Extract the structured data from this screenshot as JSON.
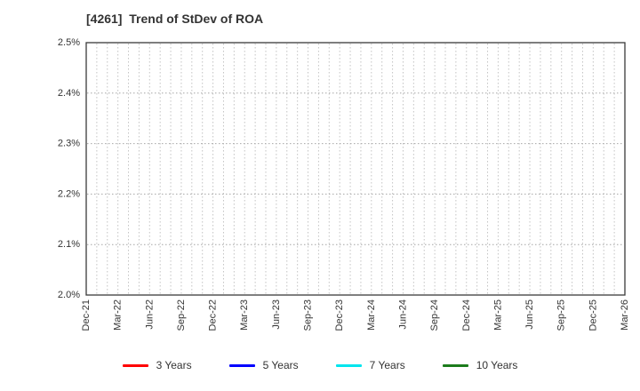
{
  "page": {
    "background": "#ffffff"
  },
  "chart_data": {
    "type": "line",
    "title": "[4261]  Trend of StDev of ROA",
    "x_tick_labels": [
      "Dec-21",
      "Mar-22",
      "Jun-22",
      "Sep-22",
      "Dec-22",
      "Mar-23",
      "Jun-23",
      "Sep-23",
      "Dec-23",
      "Mar-24",
      "Jun-24",
      "Sep-24",
      "Dec-24",
      "Mar-25",
      "Jun-25",
      "Sep-25",
      "Dec-25",
      "Mar-26"
    ],
    "x_minor_divisions_per_interval": 3,
    "y_axis": {
      "min": 2.0,
      "max": 2.5,
      "unit": "%",
      "ticks": [
        {
          "value": 2.0,
          "label": "2.0%"
        },
        {
          "value": 2.1,
          "label": "2.1%"
        },
        {
          "value": 2.2,
          "label": "2.2%"
        },
        {
          "value": 2.3,
          "label": "2.3%"
        },
        {
          "value": 2.4,
          "label": "2.4%"
        },
        {
          "value": 2.5,
          "label": "2.5%"
        }
      ]
    },
    "grid": {
      "vertical": "dotted-monthly",
      "horizontal": "dotted-major",
      "on": true
    },
    "legend_position": "bottom-center",
    "series": [
      {
        "name": "3 Years",
        "color": "#ff0000",
        "values": []
      },
      {
        "name": "5 Years",
        "color": "#0000ff",
        "values": []
      },
      {
        "name": "7 Years",
        "color": "#00e5ee",
        "values": []
      },
      {
        "name": "10 Years",
        "color": "#1c7c1c",
        "values": []
      }
    ]
  },
  "colors": {
    "title_text": "#333333",
    "axis_text": "#333333",
    "plot_border": "#3a3a3a",
    "grid_vertical": "#c3c3c3",
    "grid_horizontal": "#a6a6a6"
  }
}
